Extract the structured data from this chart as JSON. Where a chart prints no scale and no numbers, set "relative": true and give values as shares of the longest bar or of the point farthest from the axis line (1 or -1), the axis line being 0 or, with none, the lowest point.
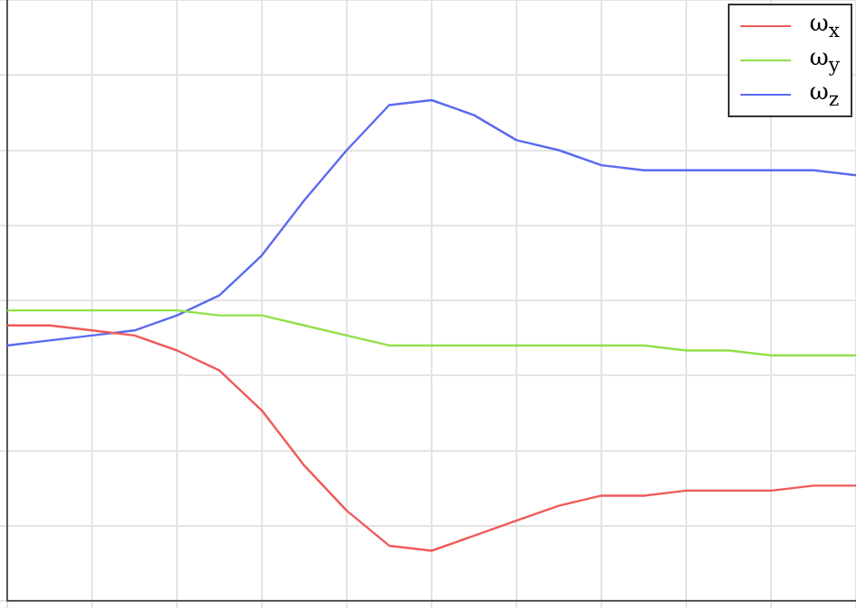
{
  "chart_data": {
    "type": "line",
    "relative": true,
    "grid": true,
    "legend": "top right",
    "marker": "none",
    "line_style": "solid",
    "categories": [
      null,
      null,
      null,
      null,
      null,
      null,
      null,
      null,
      null,
      null,
      null,
      null,
      null,
      null,
      null,
      null,
      null,
      null,
      null,
      null,
      null
    ],
    "series": [
      {
        "name": "ω$_{x}$",
        "color": "#f05a5a",
        "values": [
          0.55,
          0.55,
          0.54,
          0.53,
          0.5,
          0.46,
          0.38,
          0.27,
          0.18,
          0.11,
          0.1,
          0.13,
          0.16,
          0.19,
          0.21,
          0.21,
          0.22,
          0.22,
          0.22,
          0.23,
          0.23
        ]
      },
      {
        "name": "ω$_{y}$",
        "color": "#90e04a",
        "values": [
          0.58,
          0.58,
          0.58,
          0.58,
          0.58,
          0.57,
          0.57,
          0.55,
          0.53,
          0.51,
          0.51,
          0.51,
          0.51,
          0.51,
          0.51,
          0.51,
          0.5,
          0.5,
          0.49,
          0.49,
          0.49
        ]
      },
      {
        "name": "ω$_{z}$",
        "color": "#5a6af0",
        "values": [
          0.51,
          0.52,
          0.53,
          0.54,
          0.57,
          0.61,
          0.69,
          0.8,
          0.9,
          0.99,
          1,
          0.97,
          0.92,
          0.9,
          0.87,
          0.86,
          0.86,
          0.86,
          0.86,
          0.86,
          0.85
        ]
      }
    ]
  }
}
